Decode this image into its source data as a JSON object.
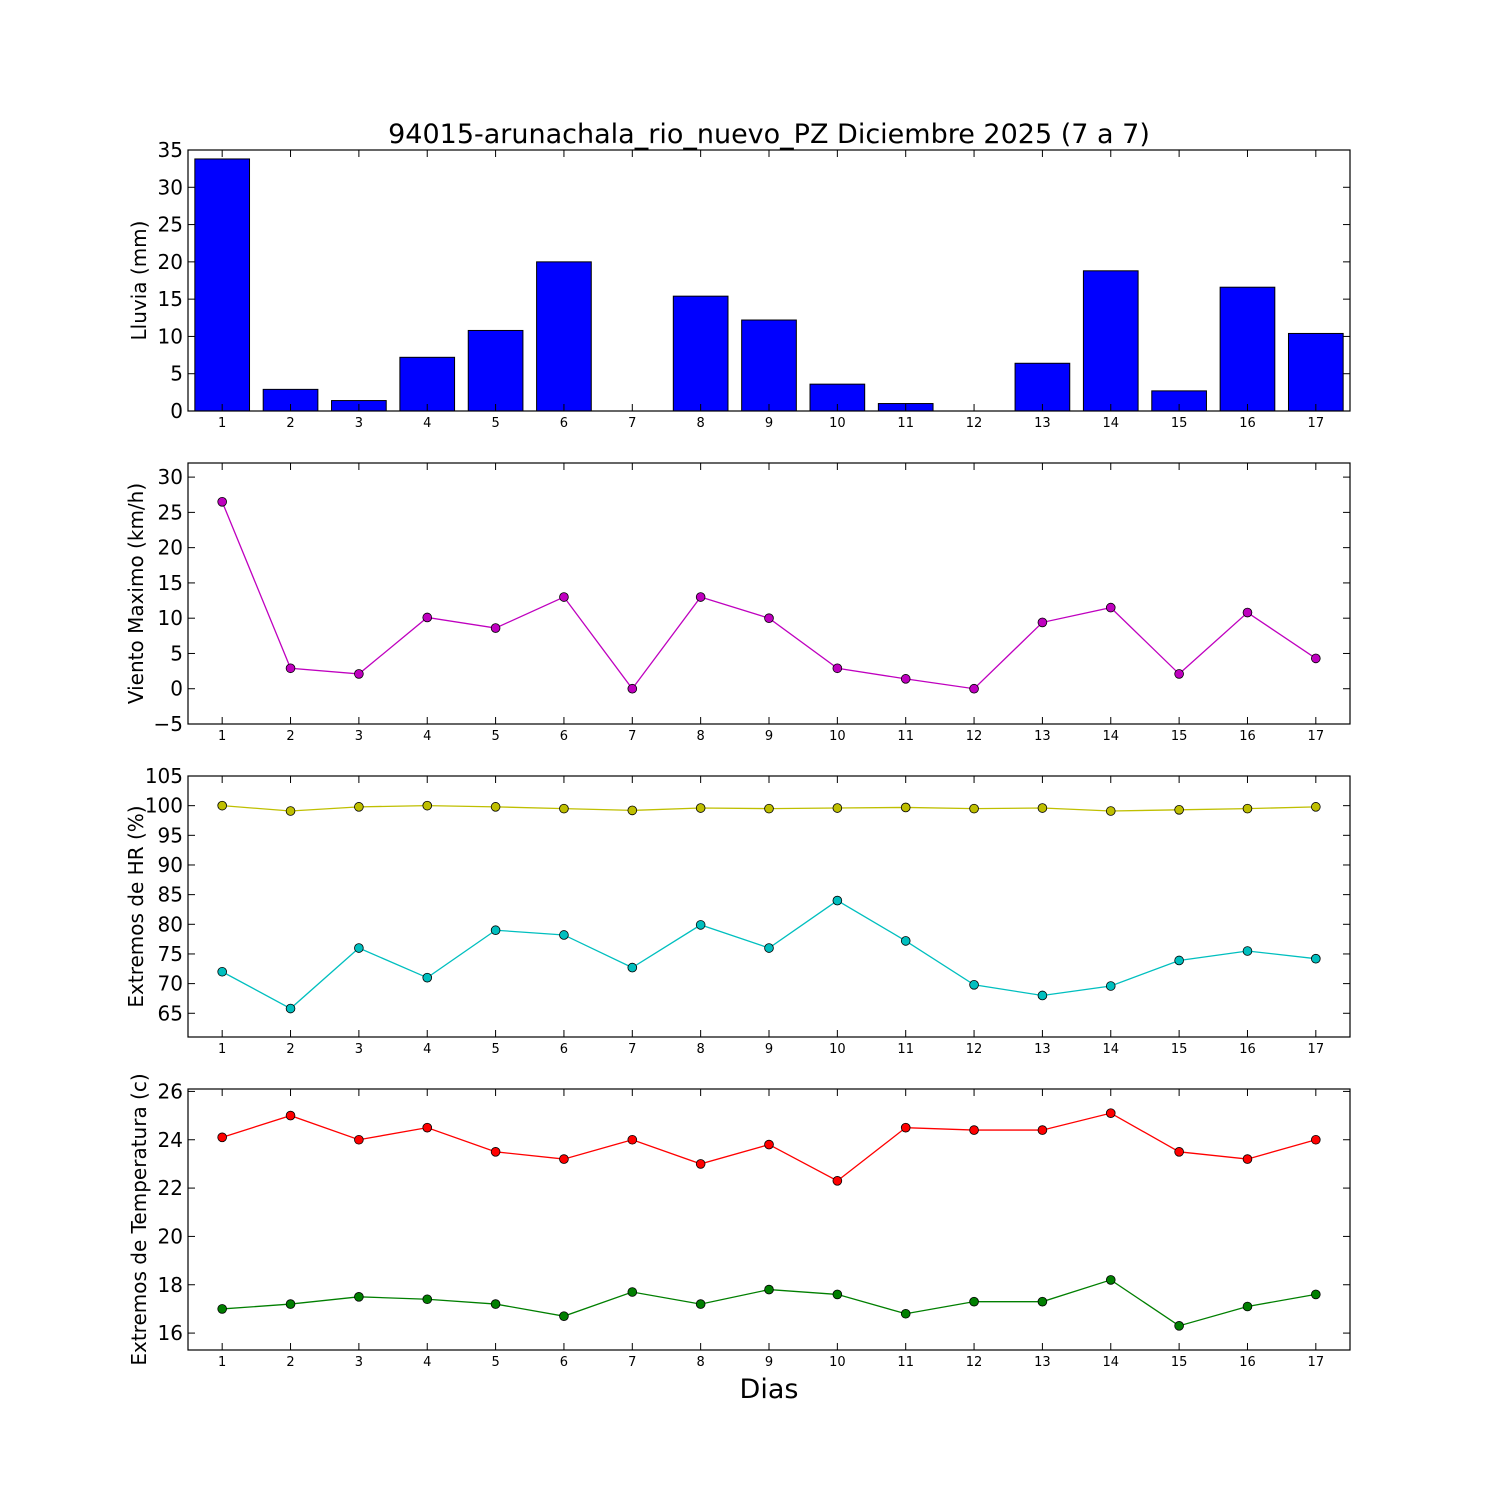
{
  "figure": {
    "title": "94015-arunachala_rio_nuevo_PZ Diciembre 2025  (7 a 7)",
    "xlabel": "Dias"
  },
  "chart_data": [
    {
      "type": "bar",
      "ylabel": "Lluvia (mm)",
      "x": [
        1,
        2,
        3,
        4,
        5,
        6,
        7,
        8,
        9,
        10,
        11,
        12,
        13,
        14,
        15,
        16,
        17
      ],
      "ylim": [
        0,
        35
      ],
      "yticks": [
        0,
        5,
        10,
        15,
        20,
        25,
        30,
        35
      ],
      "series": [
        {
          "color": "#0000ff",
          "values": [
            33.8,
            2.9,
            1.4,
            7.2,
            10.8,
            20.0,
            0.0,
            15.4,
            12.2,
            3.6,
            1.0,
            0.0,
            6.4,
            18.8,
            2.7,
            16.6,
            10.4
          ]
        }
      ]
    },
    {
      "type": "line",
      "ylabel": "Viento Maximo (km/h)",
      "x": [
        1,
        2,
        3,
        4,
        5,
        6,
        7,
        8,
        9,
        10,
        11,
        12,
        13,
        14,
        15,
        16,
        17
      ],
      "ylim": [
        -5,
        32
      ],
      "yticks": [
        -5,
        0,
        5,
        10,
        15,
        20,
        25,
        30
      ],
      "series": [
        {
          "color": "#bf00bf",
          "values": [
            26.5,
            2.9,
            2.1,
            10.1,
            8.6,
            13.0,
            0.0,
            13.0,
            10.0,
            2.9,
            1.4,
            0.0,
            9.4,
            11.5,
            2.1,
            10.8,
            4.3
          ]
        }
      ]
    },
    {
      "type": "line",
      "ylabel": "Extremos de HR (%)",
      "x": [
        1,
        2,
        3,
        4,
        5,
        6,
        7,
        8,
        9,
        10,
        11,
        12,
        13,
        14,
        15,
        16,
        17
      ],
      "ylim": [
        61,
        105
      ],
      "yticks": [
        65,
        70,
        75,
        80,
        85,
        90,
        95,
        100,
        105
      ],
      "series": [
        {
          "color": "#bfbf00",
          "values": [
            100.0,
            99.1,
            99.8,
            100.0,
            99.8,
            99.5,
            99.2,
            99.6,
            99.5,
            99.6,
            99.7,
            99.5,
            99.6,
            99.1,
            99.3,
            99.5,
            99.8
          ]
        },
        {
          "color": "#00bfbf",
          "values": [
            72.0,
            65.8,
            76.0,
            71.0,
            79.0,
            78.2,
            72.7,
            79.9,
            76.0,
            84.0,
            77.2,
            69.8,
            68.0,
            69.6,
            73.9,
            75.5,
            74.2
          ]
        }
      ]
    },
    {
      "type": "line",
      "ylabel": "Extremos de Temperatura (c)",
      "x": [
        1,
        2,
        3,
        4,
        5,
        6,
        7,
        8,
        9,
        10,
        11,
        12,
        13,
        14,
        15,
        16,
        17
      ],
      "ylim": [
        15.3,
        26.1
      ],
      "yticks": [
        16,
        18,
        20,
        22,
        24,
        26
      ],
      "series": [
        {
          "color": "#ff0000",
          "values": [
            24.1,
            25.0,
            24.0,
            24.5,
            23.5,
            23.2,
            24.0,
            23.0,
            23.8,
            22.3,
            24.5,
            24.4,
            24.4,
            25.1,
            23.5,
            23.2,
            24.0
          ]
        },
        {
          "color": "#007f00",
          "values": [
            17.0,
            17.2,
            17.5,
            17.4,
            17.2,
            16.7,
            17.7,
            17.2,
            17.8,
            17.6,
            16.8,
            17.3,
            17.3,
            18.2,
            16.3,
            17.1,
            17.6
          ]
        }
      ]
    }
  ]
}
